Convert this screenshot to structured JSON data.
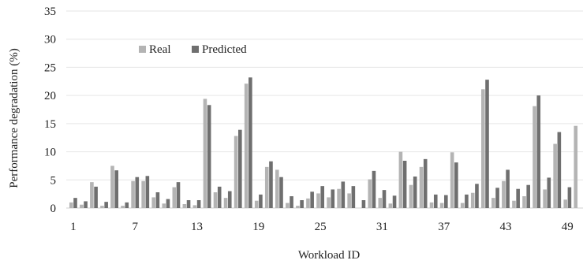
{
  "chart_data": {
    "type": "bar",
    "title": "",
    "xlabel": "Workload ID",
    "ylabel": "Performance degradation (%)",
    "ylim": [
      0,
      35
    ],
    "yticks": [
      0,
      5,
      10,
      15,
      20,
      25,
      30,
      35
    ],
    "grid": true,
    "legend_position": "top-left",
    "categories": [
      1,
      2,
      3,
      4,
      5,
      6,
      7,
      8,
      9,
      10,
      11,
      12,
      13,
      14,
      15,
      16,
      17,
      18,
      19,
      20,
      21,
      22,
      23,
      24,
      25,
      26,
      27,
      28,
      29,
      30,
      31,
      32,
      33,
      34,
      35,
      36,
      37,
      38,
      39,
      40,
      41,
      42,
      43,
      44,
      45,
      46,
      47,
      48,
      49,
      50
    ],
    "xtick_labels": [
      "1",
      "7",
      "13",
      "19",
      "25",
      "31",
      "37",
      "43",
      "49"
    ],
    "xtick_indices": [
      0,
      6,
      12,
      18,
      24,
      30,
      36,
      42,
      48
    ],
    "series": [
      {
        "name": "Real",
        "color": "#b4b4b4",
        "values": [
          1.0,
          0.6,
          4.6,
          0.4,
          7.5,
          0.4,
          4.8,
          4.8,
          1.9,
          0.8,
          3.7,
          0.7,
          0.5,
          19.4,
          2.8,
          1.8,
          12.8,
          22.1,
          1.3,
          7.3,
          6.8,
          0.9,
          0.4,
          1.7,
          2.6,
          1.9,
          3.4,
          2.6,
          0.0,
          5.1,
          1.8,
          0.8,
          10.0,
          4.1,
          7.3,
          1.0,
          0.9,
          9.9,
          0.9,
          2.7,
          21.1,
          1.8,
          4.8,
          1.3,
          2.1,
          18.1,
          3.3,
          11.4,
          1.5,
          14.6
        ]
      },
      {
        "name": "Predicted",
        "color": "#6f6f6f",
        "values": [
          1.8,
          1.2,
          3.8,
          1.1,
          6.7,
          1.0,
          5.5,
          5.7,
          2.8,
          1.6,
          4.6,
          1.4,
          1.4,
          18.3,
          3.8,
          3.0,
          13.9,
          23.2,
          2.4,
          8.3,
          5.5,
          2.1,
          1.4,
          2.9,
          3.9,
          3.3,
          4.7,
          3.9,
          1.4,
          6.6,
          3.2,
          2.2,
          8.4,
          5.6,
          8.7,
          2.4,
          2.3,
          8.1,
          2.4,
          4.3,
          22.8,
          3.6,
          6.8,
          3.4,
          4.1,
          20.0,
          5.4,
          13.5,
          3.7,
          null
        ]
      }
    ]
  }
}
